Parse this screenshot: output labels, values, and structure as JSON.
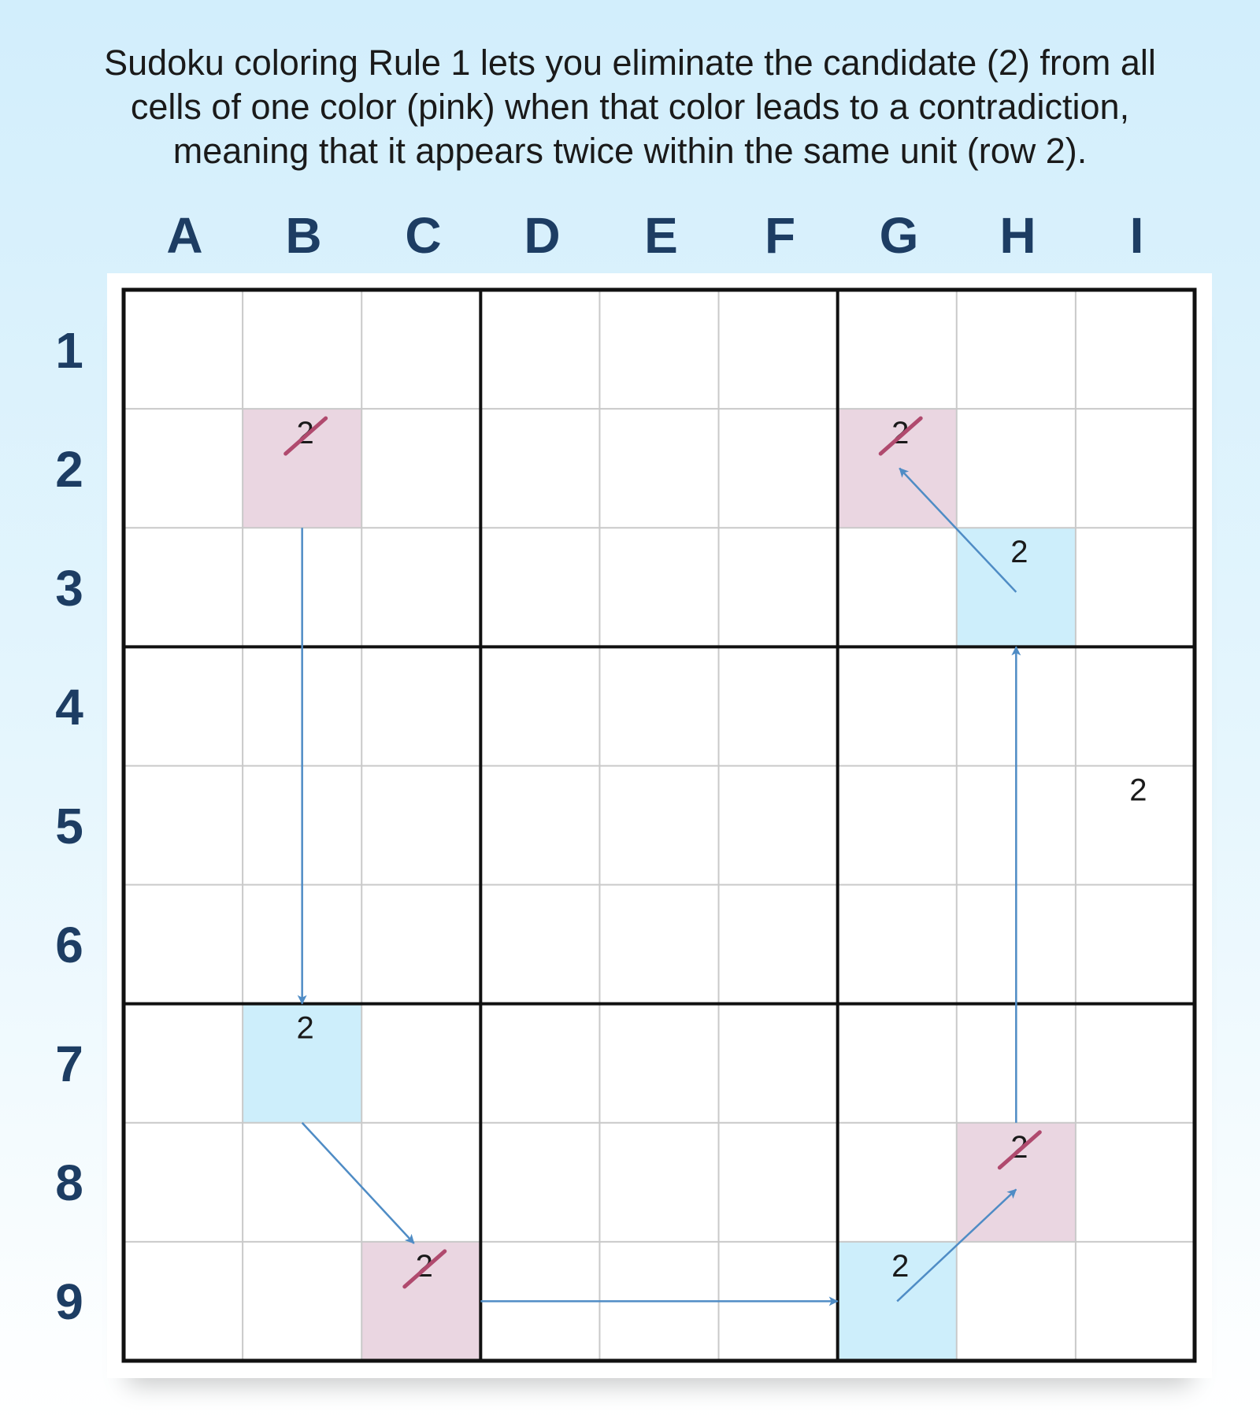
{
  "caption": [
    "Sudoku coloring Rule 1 lets you eliminate the candidate (2) from all",
    "cells of one color (pink) when that color leads to a contradiction,",
    "meaning that it appears twice within the same unit (row 2)."
  ],
  "columns": [
    "A",
    "B",
    "C",
    "D",
    "E",
    "F",
    "G",
    "H",
    "I"
  ],
  "rows": [
    "1",
    "2",
    "3",
    "4",
    "5",
    "6",
    "7",
    "8",
    "9"
  ],
  "colors": {
    "pink": "#ead6e1",
    "blue": "#cdeefb",
    "arrow": "#4f8cc5",
    "strike": "#b04a6e",
    "grid_thin": "#c9c9c9",
    "grid_thick": "#111111",
    "label": "#1d3d63"
  },
  "cells": [
    {
      "id": "B2",
      "col": 2,
      "row": 2,
      "color": "pink",
      "value": "2",
      "eliminated": true
    },
    {
      "id": "G2",
      "col": 7,
      "row": 2,
      "color": "pink",
      "value": "2",
      "eliminated": true
    },
    {
      "id": "H3",
      "col": 8,
      "row": 3,
      "color": "blue",
      "value": "2",
      "eliminated": false
    },
    {
      "id": "I5",
      "col": 9,
      "row": 5,
      "color": "none",
      "value": "2",
      "eliminated": false
    },
    {
      "id": "B7",
      "col": 2,
      "row": 7,
      "color": "blue",
      "value": "2",
      "eliminated": false
    },
    {
      "id": "H8",
      "col": 8,
      "row": 8,
      "color": "pink",
      "value": "2",
      "eliminated": true
    },
    {
      "id": "C9",
      "col": 3,
      "row": 9,
      "color": "pink",
      "value": "2",
      "eliminated": true
    },
    {
      "id": "G9",
      "col": 7,
      "row": 9,
      "color": "blue",
      "value": "2",
      "eliminated": false
    }
  ],
  "links": [
    {
      "from": "B2",
      "to": "B7"
    },
    {
      "from": "B7",
      "to": "C9"
    },
    {
      "from": "C9",
      "to": "G9"
    },
    {
      "from": "G9",
      "to": "H8"
    },
    {
      "from": "H8",
      "to": "H3"
    },
    {
      "from": "H3",
      "to": "G2"
    }
  ]
}
